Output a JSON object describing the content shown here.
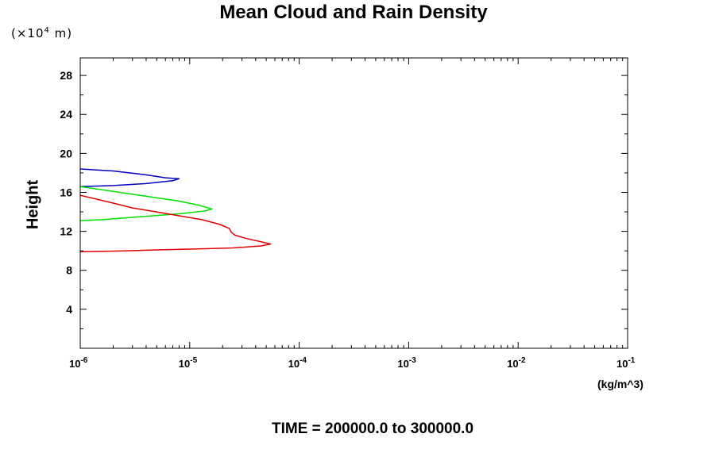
{
  "chart_data": {
    "type": "line",
    "title": "Mean Cloud and Rain Density",
    "ylabel": "Height",
    "y_unit_note": "(×10",
    "y_unit_exp": "4",
    "y_unit_suffix": " m)",
    "xlabel": "(kg/m^3)",
    "xscale": "log",
    "xlim": [
      1e-06,
      0.1
    ],
    "ylim": [
      0,
      29.8
    ],
    "y_ticks": [
      4,
      8,
      12,
      16,
      20,
      24,
      28
    ],
    "x_ticks": [
      {
        "value": 1e-06,
        "base": "10",
        "exp": "-6"
      },
      {
        "value": 1e-05,
        "base": "10",
        "exp": "-5"
      },
      {
        "value": 0.0001,
        "base": "10",
        "exp": "-4"
      },
      {
        "value": 0.001,
        "base": "10",
        "exp": "-3"
      },
      {
        "value": 0.01,
        "base": "10",
        "exp": "-2"
      },
      {
        "value": 0.1,
        "base": "10",
        "exp": "-1"
      }
    ],
    "series": [
      {
        "color": "#0000c0",
        "points": [
          [
            1e-06,
            18.4
          ],
          [
            2e-06,
            18.2
          ],
          [
            4e-06,
            17.8
          ],
          [
            6e-06,
            17.5
          ],
          [
            8e-06,
            17.4
          ],
          [
            7e-06,
            17.2
          ],
          [
            4e-06,
            16.9
          ],
          [
            2e-06,
            16.7
          ],
          [
            1e-06,
            16.6
          ]
        ]
      },
      {
        "color": "#00e000",
        "points": [
          [
            1e-06,
            16.6
          ],
          [
            2e-06,
            16.1
          ],
          [
            4e-06,
            15.6
          ],
          [
            8e-06,
            15.1
          ],
          [
            1.2e-05,
            14.7
          ],
          [
            1.6e-05,
            14.3
          ],
          [
            1.4e-05,
            14.1
          ],
          [
            8e-06,
            13.8
          ],
          [
            3.5e-06,
            13.5
          ],
          [
            1.6e-06,
            13.2
          ],
          [
            1e-06,
            13.1
          ]
        ]
      },
      {
        "color": "#e00000",
        "points": [
          [
            1e-06,
            15.7
          ],
          [
            2e-06,
            14.9
          ],
          [
            3e-06,
            14.4
          ],
          [
            5e-06,
            14.0
          ],
          [
            8e-06,
            13.6
          ],
          [
            1.3e-05,
            13.2
          ],
          [
            1.9e-05,
            12.7
          ],
          [
            2.3e-05,
            12.3
          ],
          [
            2.4e-05,
            11.9
          ],
          [
            2.6e-05,
            11.6
          ],
          [
            3.2e-05,
            11.3
          ],
          [
            4.2e-05,
            11.0
          ],
          [
            5.5e-05,
            10.7
          ],
          [
            4.5e-05,
            10.5
          ],
          [
            2.5e-05,
            10.3
          ],
          [
            1.2e-05,
            10.2
          ],
          [
            5e-06,
            10.1
          ],
          [
            2.5e-06,
            10.0
          ],
          [
            1e-06,
            9.9
          ]
        ]
      }
    ]
  },
  "footer": {
    "time_label": "TIME = 200000.0 to 300000.0"
  }
}
